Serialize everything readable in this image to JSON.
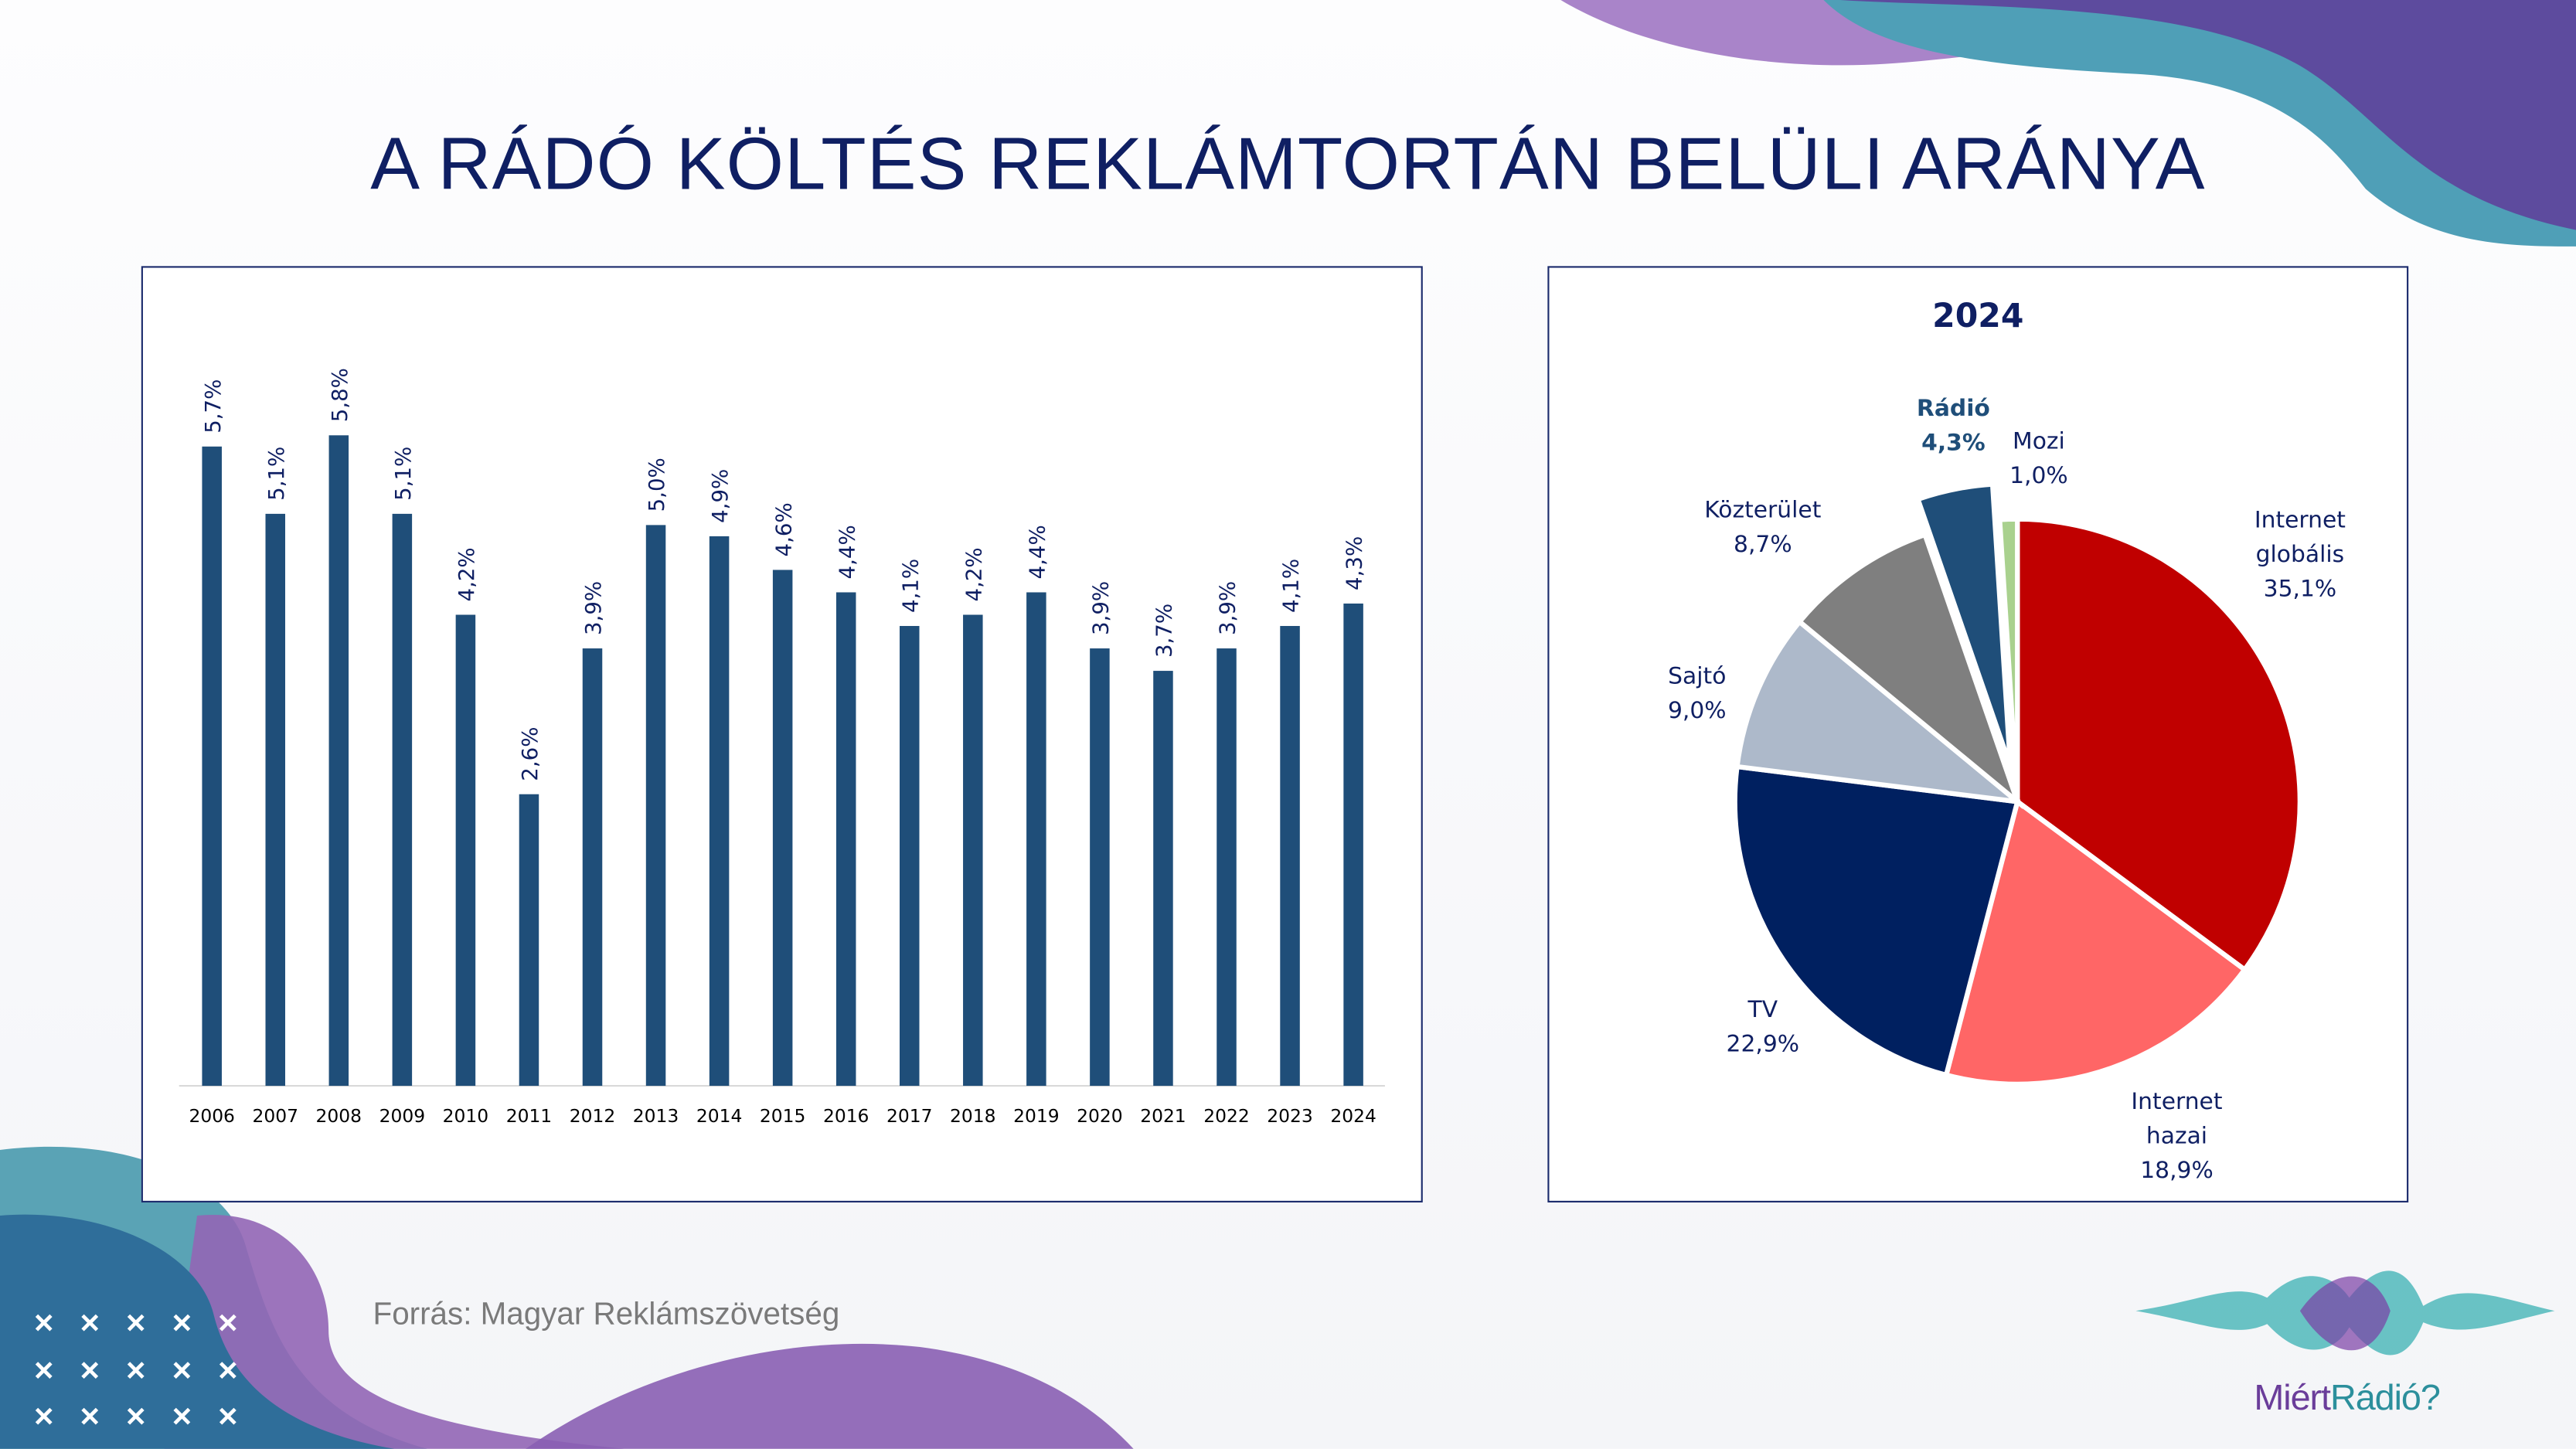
{
  "title": "A RÁDÓ KÖLTÉS REKLÁMTORTÁN BELÜLI ARÁNYA",
  "source": "Forrás: Magyar Reklámszövetség",
  "logo": {
    "part1": "Miért",
    "part2": "Rádió?"
  },
  "colors": {
    "bar": "#1f4e79",
    "title": "#0f1f63",
    "frame": "#1a2a6c"
  },
  "chart_data": [
    {
      "type": "bar",
      "title": "",
      "categories": [
        "2006",
        "2007",
        "2008",
        "2009",
        "2010",
        "2011",
        "2012",
        "2013",
        "2014",
        "2015",
        "2016",
        "2017",
        "2018",
        "2019",
        "2020",
        "2021",
        "2022",
        "2023",
        "2024"
      ],
      "values": [
        5.7,
        5.1,
        5.8,
        5.1,
        4.2,
        2.6,
        3.9,
        5.0,
        4.9,
        4.6,
        4.4,
        4.1,
        4.2,
        4.4,
        3.9,
        3.7,
        3.9,
        4.1,
        4.3
      ],
      "labels": [
        "5,7%",
        "5,1%",
        "5,8%",
        "5,1%",
        "4,2%",
        "2,6%",
        "3,9%",
        "5,0%",
        "4,9%",
        "4,6%",
        "4,4%",
        "4,1%",
        "4,2%",
        "4,4%",
        "3,9%",
        "3,7%",
        "3,9%",
        "4,1%",
        "4,3%"
      ],
      "ylim": [
        0,
        5.8
      ],
      "xlabel": "",
      "ylabel": "",
      "grid": false
    },
    {
      "type": "pie",
      "title": "2024",
      "slices": [
        {
          "name": "Internet globális",
          "lines": [
            "Internet",
            "globális",
            "35,1%"
          ],
          "value": 35.1,
          "color": "#c00000"
        },
        {
          "name": "Internet hazai",
          "lines": [
            "Internet",
            "hazai",
            "18,9%"
          ],
          "value": 18.9,
          "color": "#ff6666"
        },
        {
          "name": "TV",
          "lines": [
            "TV",
            "22,9%"
          ],
          "value": 22.9,
          "color": "#002060"
        },
        {
          "name": "Sajtó",
          "lines": [
            "Sajtó",
            "9,0%"
          ],
          "value": 9.0,
          "color": "#adb9ca"
        },
        {
          "name": "Közterület",
          "lines": [
            "Közterület",
            "8,7%"
          ],
          "value": 8.7,
          "color": "#7f7f7f"
        },
        {
          "name": "Rádió",
          "lines": [
            "Rádió",
            "4,3%"
          ],
          "value": 4.3,
          "color": "#1f4e79",
          "exploded": true,
          "bold": true
        },
        {
          "name": "Mozi",
          "lines": [
            "Mozi",
            "1,0%"
          ],
          "value": 1.0,
          "color": "#a9d18e"
        }
      ]
    }
  ]
}
